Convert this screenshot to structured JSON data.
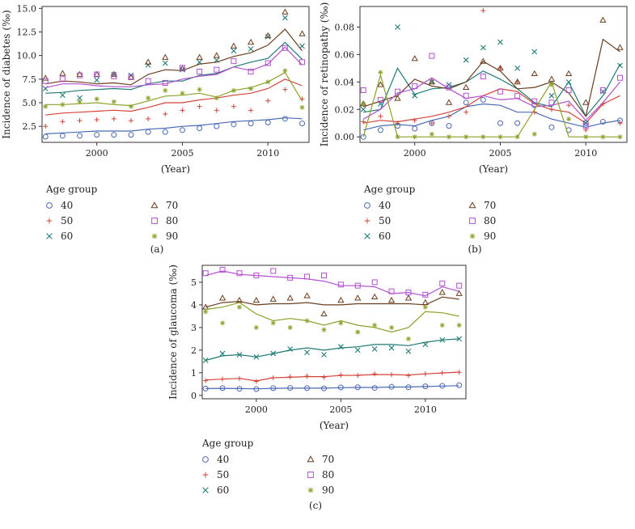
{
  "legend": {
    "title": "Age group",
    "groups": [
      {
        "label": "40",
        "color": "#4a69b5",
        "marker": "circle"
      },
      {
        "label": "50",
        "color": "#d2443a",
        "marker": "plus"
      },
      {
        "label": "60",
        "color": "#1f7a74",
        "marker": "cross"
      },
      {
        "label": "70",
        "color": "#6b3e1f",
        "marker": "triangle"
      },
      {
        "label": "80",
        "color": "#b24fd1",
        "marker": "square"
      },
      {
        "label": "90",
        "color": "#8aa12a",
        "marker": "asterisk"
      }
    ]
  },
  "chart_data": [
    {
      "id": "a",
      "panel_label": "(a)",
      "type": "scatter",
      "title": "",
      "xlabel": "(Year)",
      "ylabel": "Incidence of diabetes (‰)",
      "xlim": [
        1996.8,
        2012.4
      ],
      "ylim": [
        0.8,
        15.2
      ],
      "xticks": [
        2000,
        2005,
        2010
      ],
      "yticks": [
        2.5,
        5.0,
        7.5,
        10.0,
        12.5,
        15.0
      ],
      "ytick_labels": [
        "2.5",
        "5.0",
        "7.5",
        "10.0",
        "12.5",
        "15.0"
      ],
      "x": [
        1997,
        1998,
        1999,
        2000,
        2001,
        2002,
        2003,
        2004,
        2005,
        2006,
        2007,
        2008,
        2009,
        2010,
        2011,
        2012
      ],
      "series": [
        {
          "name": "40",
          "points": [
            1.4,
            1.5,
            1.5,
            1.6,
            1.6,
            1.6,
            1.9,
            1.9,
            2.1,
            2.3,
            2.5,
            2.7,
            2.8,
            2.9,
            3.3,
            2.8
          ],
          "fit": [
            1.7,
            1.8,
            1.9,
            2.0,
            2.0,
            2.0,
            2.2,
            2.3,
            2.5,
            2.6,
            2.8,
            3.0,
            3.1,
            3.2,
            3.4,
            3.3
          ]
        },
        {
          "name": "50",
          "points": [
            2.5,
            3.0,
            3.1,
            3.2,
            3.3,
            3.1,
            3.3,
            3.8,
            4.2,
            4.6,
            4.2,
            4.6,
            4.2,
            5.2,
            6.4,
            5.4
          ],
          "fit": [
            3.7,
            3.9,
            4.0,
            4.1,
            4.2,
            4.1,
            4.5,
            5.0,
            5.0,
            5.3,
            5.5,
            5.8,
            6.0,
            6.5,
            7.5,
            6.8
          ]
        },
        {
          "name": "60",
          "points": [
            6.5,
            5.8,
            5.5,
            7.4,
            8.0,
            7.9,
            9.0,
            9.2,
            8.5,
            9.3,
            9.5,
            10.5,
            10.7,
            12.0,
            14.0,
            11.0
          ],
          "fit": [
            6.0,
            6.1,
            6.3,
            6.4,
            6.5,
            6.4,
            7.0,
            7.3,
            7.3,
            7.9,
            8.1,
            8.8,
            9.3,
            9.7,
            11.4,
            9.6
          ]
        },
        {
          "name": "70",
          "points": [
            7.6,
            8.1,
            8.0,
            8.0,
            8.0,
            7.7,
            9.3,
            9.8,
            8.6,
            9.8,
            10.0,
            11.0,
            11.4,
            12.1,
            14.6,
            12.3
          ],
          "fit": [
            7.0,
            7.3,
            7.2,
            7.0,
            7.1,
            6.9,
            8.0,
            8.5,
            8.4,
            9.1,
            9.3,
            9.9,
            10.3,
            11.1,
            12.8,
            10.5
          ]
        },
        {
          "name": "80",
          "points": [
            7.3,
            7.5,
            7.9,
            8.0,
            7.8,
            7.7,
            7.3,
            7.1,
            8.7,
            8.3,
            8.5,
            9.4,
            8.3,
            9.2,
            10.8,
            9.3
          ],
          "fit": [
            6.6,
            7.0,
            7.0,
            6.8,
            6.7,
            6.7,
            6.9,
            7.0,
            7.5,
            7.8,
            8.0,
            8.8,
            8.4,
            9.1,
            10.9,
            9.0
          ]
        },
        {
          "name": "90",
          "points": [
            4.6,
            4.8,
            5.1,
            5.4,
            5.1,
            4.6,
            5.5,
            6.3,
            6.0,
            6.4,
            5.5,
            6.3,
            6.5,
            7.2,
            8.4,
            4.5
          ],
          "fit": [
            4.8,
            4.8,
            4.9,
            5.0,
            4.8,
            4.7,
            5.2,
            5.7,
            5.8,
            6.0,
            5.6,
            6.3,
            6.6,
            7.2,
            8.2,
            5.2
          ]
        }
      ]
    },
    {
      "id": "b",
      "panel_label": "(b)",
      "type": "scatter",
      "title": "",
      "xlabel": "(Year)",
      "ylabel": "Incidence of retinopathy (‰)",
      "xlim": [
        1996.8,
        2012.4
      ],
      "ylim": [
        -0.004,
        0.095
      ],
      "xticks": [
        2000,
        2005,
        2010
      ],
      "yticks": [
        0.0,
        0.02,
        0.04,
        0.06,
        0.08
      ],
      "ytick_labels": [
        "0.00",
        "0.02",
        "0.04",
        "0.06",
        "0.08"
      ],
      "x": [
        1997,
        1998,
        1999,
        2000,
        2001,
        2002,
        2003,
        2004,
        2005,
        2006,
        2007,
        2008,
        2009,
        2010,
        2011,
        2012
      ],
      "series": [
        {
          "name": "40",
          "points": [
            0.0,
            0.005,
            0.008,
            0.006,
            0.01,
            0.008,
            0.025,
            0.027,
            0.01,
            0.01,
            0.023,
            0.007,
            0.005,
            0.01,
            0.011,
            0.012
          ],
          "fit": [
            0.005,
            0.008,
            0.009,
            0.008,
            0.012,
            0.015,
            0.022,
            0.024,
            0.023,
            0.018,
            0.018,
            0.013,
            0.01,
            0.007,
            0.01,
            0.012
          ]
        },
        {
          "name": "50",
          "points": [
            0.011,
            0.015,
            0.01,
            0.012,
            0.01,
            0.015,
            0.018,
            0.092,
            0.05,
            0.04,
            0.018,
            0.02,
            0.023,
            0.005,
            0.024,
            0.01
          ],
          "fit": [
            0.01,
            0.012,
            0.011,
            0.013,
            0.015,
            0.018,
            0.022,
            0.03,
            0.035,
            0.033,
            0.024,
            0.02,
            0.018,
            0.01,
            0.024,
            0.03
          ]
        },
        {
          "name": "60",
          "points": [
            0.02,
            0.024,
            0.08,
            0.03,
            0.04,
            0.038,
            0.056,
            0.065,
            0.069,
            0.05,
            0.062,
            0.03,
            0.04,
            0.01,
            0.033,
            0.052
          ],
          "fit": [
            0.018,
            0.02,
            0.05,
            0.031,
            0.035,
            0.036,
            0.04,
            0.048,
            0.042,
            0.035,
            0.025,
            0.022,
            0.04,
            0.015,
            0.03,
            0.053
          ]
        },
        {
          "name": "70",
          "points": [
            0.024,
            0.038,
            0.028,
            0.057,
            0.04,
            0.025,
            0.036,
            0.055,
            0.05,
            0.04,
            0.046,
            0.042,
            0.046,
            0.025,
            0.085,
            0.065
          ],
          "fit": [
            0.022,
            0.026,
            0.03,
            0.042,
            0.037,
            0.035,
            0.04,
            0.055,
            0.048,
            0.035,
            0.036,
            0.04,
            0.032,
            0.015,
            0.071,
            0.062
          ]
        },
        {
          "name": "80",
          "points": [
            0.034,
            0.027,
            0.033,
            0.037,
            0.059,
            0.036,
            0.03,
            0.044,
            0.033,
            0.03,
            0.026,
            0.025,
            0.034,
            0.008,
            0.034,
            0.043
          ],
          "fit": [
            0.013,
            0.02,
            0.032,
            0.035,
            0.043,
            0.035,
            0.028,
            0.03,
            0.027,
            0.028,
            0.022,
            0.023,
            0.026,
            0.012,
            0.025,
            0.04
          ]
        },
        {
          "name": "90",
          "points": [
            0.024,
            0.047,
            0.0,
            0.0,
            0.002,
            0.0,
            0.0,
            0.0,
            0.0,
            0.0,
            0.002,
            0.038,
            0.013,
            0.0,
            0.0,
            0.0
          ],
          "fit": [
            0.0,
            0.045,
            0.0,
            0.0,
            0.0,
            0.0,
            0.0,
            0.0,
            0.0,
            0.0,
            0.02,
            0.04,
            0.0,
            0.0,
            0.0,
            0.0
          ]
        }
      ]
    },
    {
      "id": "c",
      "panel_label": "(c)",
      "type": "scatter",
      "title": "",
      "xlabel": "(Year)",
      "ylabel": "Incidence of glaucoma (‰)",
      "xlim": [
        1996.8,
        2012.4
      ],
      "ylim": [
        -0.15,
        5.75
      ],
      "xticks": [
        2000,
        2005,
        2010
      ],
      "yticks": [
        0,
        1,
        2,
        3,
        4,
        5
      ],
      "ytick_labels": [
        "0",
        "1",
        "2",
        "3",
        "4",
        "5"
      ],
      "x": [
        1997,
        1998,
        1999,
        2000,
        2001,
        2002,
        2003,
        2004,
        2005,
        2006,
        2007,
        2008,
        2009,
        2010,
        2011,
        2012
      ],
      "series": [
        {
          "name": "40",
          "points": [
            0.3,
            0.32,
            0.29,
            0.28,
            0.32,
            0.33,
            0.32,
            0.31,
            0.35,
            0.36,
            0.33,
            0.38,
            0.36,
            0.4,
            0.42,
            0.45
          ],
          "fit": [
            0.3,
            0.31,
            0.3,
            0.29,
            0.31,
            0.32,
            0.32,
            0.32,
            0.34,
            0.35,
            0.35,
            0.37,
            0.37,
            0.39,
            0.41,
            0.43
          ]
        },
        {
          "name": "50",
          "points": [
            0.65,
            0.72,
            0.75,
            0.62,
            0.78,
            0.82,
            0.85,
            0.8,
            0.9,
            0.88,
            0.95,
            0.92,
            0.88,
            0.95,
            1.0,
            1.02
          ],
          "fit": [
            0.68,
            0.72,
            0.75,
            0.64,
            0.78,
            0.8,
            0.83,
            0.83,
            0.88,
            0.89,
            0.92,
            0.92,
            0.9,
            0.95,
            0.99,
            1.03
          ]
        },
        {
          "name": "60",
          "points": [
            1.55,
            1.85,
            1.8,
            1.7,
            1.85,
            2.05,
            1.9,
            1.8,
            2.15,
            2.0,
            2.05,
            2.1,
            1.95,
            2.25,
            2.45,
            2.5
          ],
          "fit": [
            1.55,
            1.75,
            1.8,
            1.7,
            1.85,
            2.0,
            2.1,
            2.0,
            2.1,
            2.15,
            2.25,
            2.25,
            2.2,
            2.35,
            2.45,
            2.5
          ]
        },
        {
          "name": "70",
          "points": [
            3.9,
            4.3,
            4.2,
            4.2,
            4.25,
            4.3,
            4.4,
            3.6,
            4.2,
            4.3,
            4.35,
            4.2,
            4.3,
            4.1,
            4.55,
            4.5
          ],
          "fit": [
            3.9,
            4.1,
            4.15,
            4.0,
            4.05,
            4.05,
            4.1,
            4.0,
            4.0,
            4.05,
            4.05,
            4.05,
            4.05,
            4.0,
            4.35,
            4.25
          ]
        },
        {
          "name": "80",
          "points": [
            5.4,
            5.55,
            5.4,
            5.3,
            5.5,
            5.2,
            5.25,
            5.3,
            4.9,
            4.85,
            5.0,
            4.6,
            4.55,
            4.45,
            4.95,
            4.85
          ],
          "fit": [
            5.3,
            5.5,
            5.35,
            5.3,
            5.25,
            5.2,
            5.15,
            5.05,
            4.85,
            4.85,
            4.8,
            4.5,
            4.55,
            4.4,
            4.8,
            4.6
          ]
        },
        {
          "name": "90",
          "points": [
            3.7,
            3.2,
            3.9,
            3.0,
            3.2,
            3.0,
            3.3,
            2.9,
            3.2,
            2.8,
            3.1,
            3.0,
            2.5,
            3.9,
            3.1,
            3.1
          ],
          "fit": [
            3.8,
            3.9,
            4.1,
            3.6,
            3.3,
            3.4,
            3.3,
            3.1,
            3.3,
            3.1,
            3.0,
            2.8,
            3.0,
            3.7,
            3.65,
            3.5
          ]
        }
      ]
    }
  ]
}
